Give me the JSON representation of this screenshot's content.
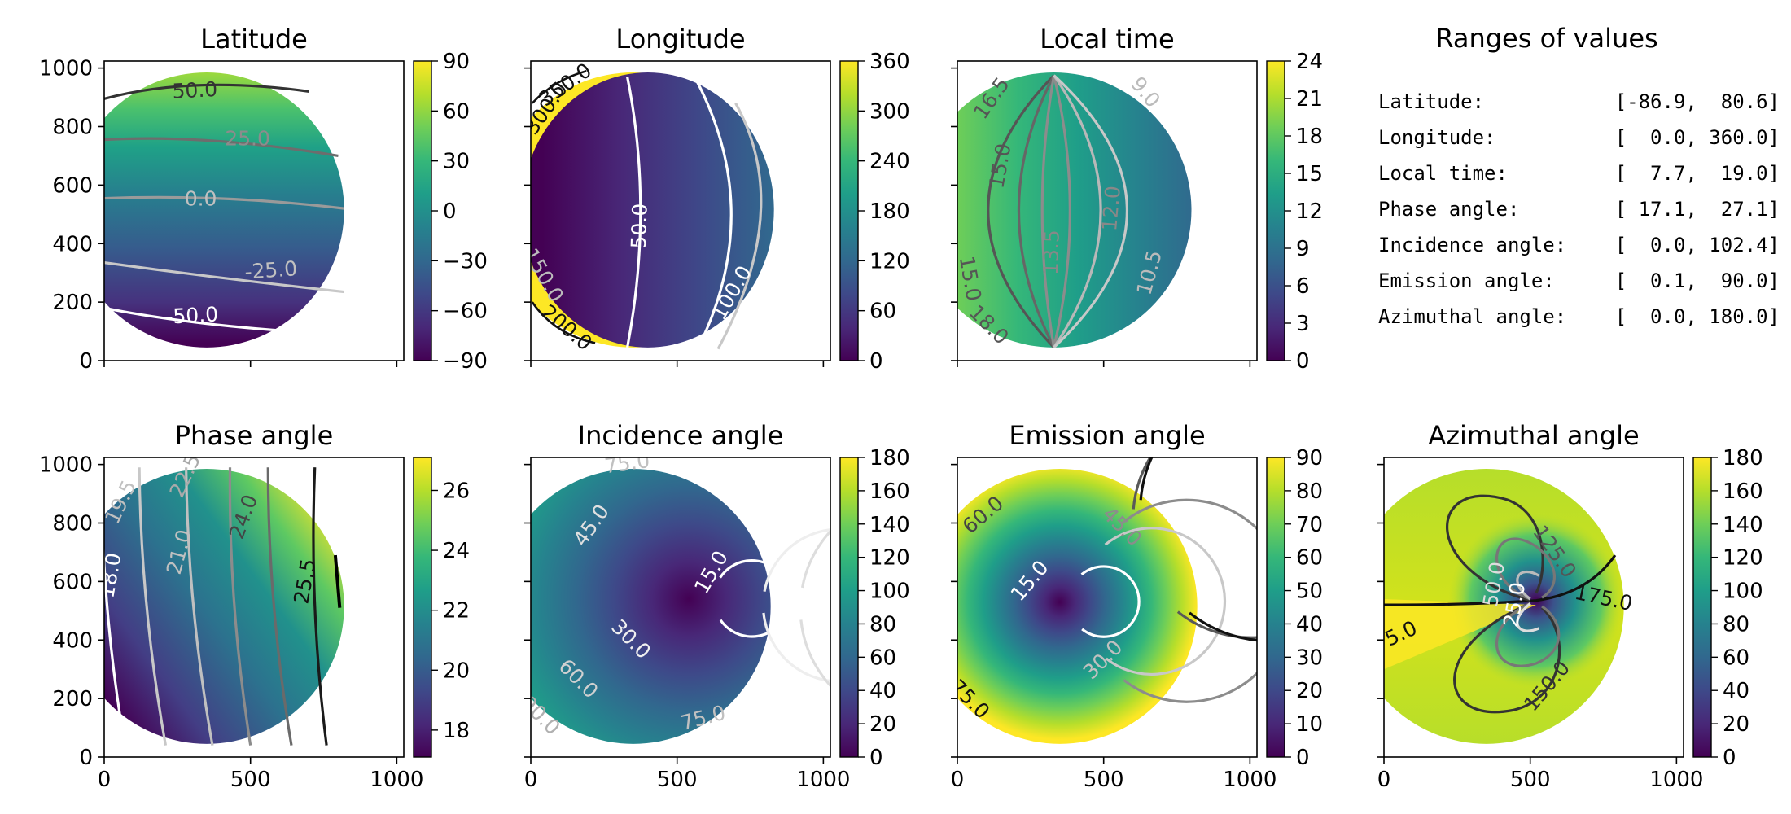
{
  "colormap": [
    "#440154",
    "#482878",
    "#3e4989",
    "#31688e",
    "#26828e",
    "#1f9e89",
    "#35b779",
    "#6ece58",
    "#b5de2b",
    "#fde725"
  ],
  "contour_colors": [
    "#000000",
    "#595959",
    "#8c8c8c",
    "#c0c0c0",
    "#ffffff"
  ],
  "chart_data": [
    {
      "type": "heatmap",
      "title": "Latitude",
      "ylim": [
        0,
        1024
      ],
      "xlim": [
        0,
        1024
      ],
      "x_ticks": [],
      "y_ticks": [
        "0",
        "200",
        "400",
        "600",
        "800",
        "1000"
      ],
      "colorbar": {
        "range": [
          -90,
          90
        ],
        "ticks": [
          90,
          60,
          30,
          0,
          -30,
          -60,
          -90
        ],
        "tick_labels": [
          "90",
          "60",
          "30",
          "0",
          "−30",
          "−60",
          "−90"
        ]
      },
      "contours": [
        {
          "label": "50.0",
          "color": "#595959"
        },
        {
          "label": "25.0",
          "color": "#8c8c8c"
        },
        {
          "label": "0.0",
          "color": "#c0c0c0"
        },
        {
          "label": "-25.0",
          "color": "#c0c0c0"
        },
        {
          "label": "-50.0",
          "color": "#ffffff"
        }
      ]
    },
    {
      "type": "heatmap",
      "title": "Longitude",
      "ylim": [
        0,
        1024
      ],
      "xlim": [
        0,
        1024
      ],
      "x_ticks": [],
      "y_ticks": [],
      "colorbar": {
        "range": [
          0,
          360
        ],
        "ticks": [
          360,
          300,
          240,
          180,
          120,
          60,
          0
        ],
        "tick_labels": [
          "360",
          "300",
          "240",
          "180",
          "120",
          "60",
          "0"
        ]
      },
      "contours": [
        {
          "label": "350.0",
          "color": "#000000"
        },
        {
          "label": "300.0",
          "color": "#000000"
        },
        {
          "label": "50.0",
          "color": "#ffffff"
        },
        {
          "label": "100.0",
          "color": "#ffffff"
        },
        {
          "label": "150.0",
          "color": "#c0c0c0"
        },
        {
          "label": "200.0",
          "color": "#000000"
        }
      ]
    },
    {
      "type": "heatmap",
      "title": "Local time",
      "ylim": [
        0,
        1024
      ],
      "xlim": [
        0,
        1024
      ],
      "x_ticks": [],
      "y_ticks": [],
      "colorbar": {
        "range": [
          0,
          24
        ],
        "ticks": [
          24,
          21,
          18,
          15,
          12,
          9,
          6,
          3,
          0
        ],
        "tick_labels": [
          "24",
          "21",
          "18",
          "15",
          "12",
          "9",
          "6",
          "3",
          "0"
        ]
      },
      "contours": [
        {
          "label": "16.5",
          "color": "#595959"
        },
        {
          "label": "15.0",
          "color": "#595959"
        },
        {
          "label": "13.5",
          "color": "#8c8c8c"
        },
        {
          "label": "12.0",
          "color": "#8c8c8c"
        },
        {
          "label": "10.5",
          "color": "#c0c0c0"
        },
        {
          "label": "9.0",
          "color": "#c0c0c0"
        },
        {
          "label": "18.0",
          "color": "#595959"
        }
      ]
    },
    {
      "type": "table",
      "title": "Ranges of values",
      "rows": [
        {
          "label": "Latitude:",
          "range": "[-86.9,  80.6]"
        },
        {
          "label": "Longitude:",
          "range": "[  0.0, 360.0]"
        },
        {
          "label": "Local time:",
          "range": "[  7.7,  19.0]"
        },
        {
          "label": "Phase angle:",
          "range": "[ 17.1,  27.1]"
        },
        {
          "label": "Incidence angle:",
          "range": "[  0.0, 102.4]"
        },
        {
          "label": "Emission angle:",
          "range": "[  0.1,  90.0]"
        },
        {
          "label": "Azimuthal angle:",
          "range": "[  0.0, 180.0]"
        }
      ],
      "values": [
        [
          -86.9,
          80.6
        ],
        [
          0.0,
          360.0
        ],
        [
          7.7,
          19.0
        ],
        [
          17.1,
          27.1
        ],
        [
          0.0,
          102.4
        ],
        [
          0.1,
          90.0
        ],
        [
          0.0,
          180.0
        ]
      ]
    },
    {
      "type": "heatmap",
      "title": "Phase angle",
      "ylim": [
        0,
        1024
      ],
      "xlim": [
        0,
        1024
      ],
      "x_ticks": [
        "0",
        "500",
        "1000"
      ],
      "y_ticks": [
        "0",
        "200",
        "400",
        "600",
        "800",
        "1000"
      ],
      "colorbar": {
        "range": [
          17.1,
          27.1
        ],
        "ticks": [
          26,
          24,
          22,
          20,
          18
        ],
        "tick_labels": [
          "26",
          "24",
          "22",
          "20",
          "18"
        ]
      },
      "contours": [
        {
          "label": "18.0",
          "color": "#ffffff"
        },
        {
          "label": "19.5",
          "color": "#c0c0c0"
        },
        {
          "label": "21.0",
          "color": "#c0c0c0"
        },
        {
          "label": "22.5",
          "color": "#8c8c8c"
        },
        {
          "label": "24.0",
          "color": "#595959"
        },
        {
          "label": "25.5",
          "color": "#000000"
        }
      ]
    },
    {
      "type": "heatmap",
      "title": "Incidence angle",
      "ylim": [
        0,
        1024
      ],
      "xlim": [
        0,
        1024
      ],
      "x_ticks": [
        "0",
        "500",
        "1000"
      ],
      "y_ticks": [],
      "colorbar": {
        "range": [
          0,
          180
        ],
        "ticks": [
          180,
          160,
          140,
          120,
          100,
          80,
          60,
          40,
          20,
          0
        ],
        "tick_labels": [
          "180",
          "160",
          "140",
          "120",
          "100",
          "80",
          "60",
          "40",
          "20",
          "0"
        ]
      },
      "contours": [
        {
          "label": "15.0",
          "color": "#ffffff"
        },
        {
          "label": "30.0",
          "color": "#f0f0f0"
        },
        {
          "label": "45.0",
          "color": "#e0e0e0"
        },
        {
          "label": "60.0",
          "color": "#d0d0d0"
        },
        {
          "label": "75.0",
          "color": "#c0c0c0"
        },
        {
          "label": "90.0",
          "color": "#b0b0b0"
        }
      ]
    },
    {
      "type": "heatmap",
      "title": "Emission angle",
      "ylim": [
        0,
        1024
      ],
      "xlim": [
        0,
        1024
      ],
      "x_ticks": [
        "0",
        "500",
        "1000"
      ],
      "y_ticks": [],
      "colorbar": {
        "range": [
          0,
          90
        ],
        "ticks": [
          90,
          80,
          70,
          60,
          50,
          40,
          30,
          20,
          10,
          0
        ],
        "tick_labels": [
          "90",
          "80",
          "70",
          "60",
          "50",
          "40",
          "30",
          "20",
          "10",
          "0"
        ]
      },
      "contours": [
        {
          "label": "15.0",
          "color": "#ffffff"
        },
        {
          "label": "30.0",
          "color": "#c0c0c0"
        },
        {
          "label": "45.0",
          "color": "#8c8c8c"
        },
        {
          "label": "60.0",
          "color": "#595959"
        },
        {
          "label": "75.0",
          "color": "#000000"
        }
      ]
    },
    {
      "type": "heatmap",
      "title": "Azimuthal angle",
      "ylim": [
        0,
        1024
      ],
      "xlim": [
        0,
        1024
      ],
      "x_ticks": [
        "0",
        "500",
        "1000"
      ],
      "y_ticks": [],
      "colorbar": {
        "range": [
          0,
          180
        ],
        "ticks": [
          180,
          160,
          140,
          120,
          100,
          80,
          60,
          40,
          20,
          0
        ],
        "tick_labels": [
          "180",
          "160",
          "140",
          "120",
          "100",
          "80",
          "60",
          "40",
          "20",
          "0"
        ]
      },
      "contours": [
        {
          "label": "25.0",
          "color": "#ffffff"
        },
        {
          "label": "50.0",
          "color": "#c0c0c0"
        },
        {
          "label": "100.0",
          "color": "#8c8c8c"
        },
        {
          "label": "125.0",
          "color": "#8c8c8c"
        },
        {
          "label": "150.0",
          "color": "#595959"
        },
        {
          "label": "175.0",
          "color": "#000000"
        }
      ]
    }
  ]
}
